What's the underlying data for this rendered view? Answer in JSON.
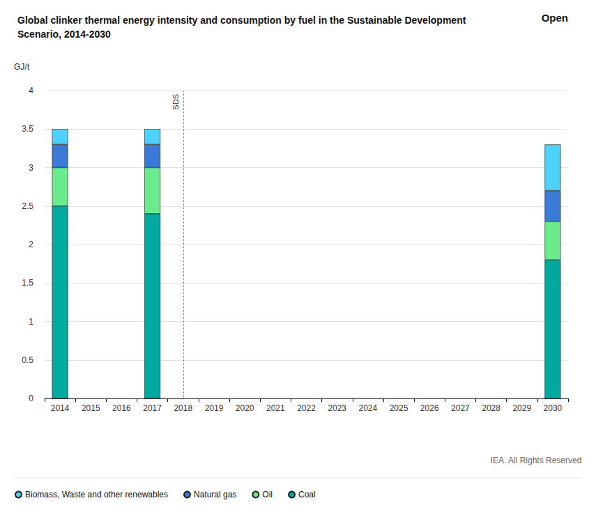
{
  "chart_data": {
    "type": "bar",
    "title": "Global clinker thermal energy intensity and consumption by fuel in the Sustainable Development Scenario, 2014-2030",
    "y_label": "GJ/t",
    "button": "Open",
    "source": "IEA. All Rights Reserved",
    "annotations": [
      {
        "x": "2018",
        "text": "SDS"
      }
    ],
    "categories": [
      "2014",
      "2015",
      "2016",
      "2017",
      "2018",
      "2019",
      "2020",
      "2021",
      "2022",
      "2023",
      "2024",
      "2025",
      "2026",
      "2027",
      "2028",
      "2029",
      "2030"
    ],
    "series": [
      {
        "name": "Coal",
        "color": "#00aa9e",
        "values": [
          2.5,
          null,
          null,
          2.4,
          null,
          null,
          null,
          null,
          null,
          null,
          null,
          null,
          null,
          null,
          null,
          null,
          1.8
        ]
      },
      {
        "name": "Oil",
        "color": "#6beb8e",
        "values": [
          0.5,
          null,
          null,
          0.6,
          null,
          null,
          null,
          null,
          null,
          null,
          null,
          null,
          null,
          null,
          null,
          null,
          0.5
        ]
      },
      {
        "name": "Natural gas",
        "color": "#3b7ad6",
        "values": [
          0.3,
          null,
          null,
          0.3,
          null,
          null,
          null,
          null,
          null,
          null,
          null,
          null,
          null,
          null,
          null,
          null,
          0.4
        ]
      },
      {
        "name": "Biomass, Waste and other renewables",
        "color": "#4dd3fb",
        "values": [
          0.2,
          null,
          null,
          0.2,
          null,
          null,
          null,
          null,
          null,
          null,
          null,
          null,
          null,
          null,
          null,
          null,
          0.6
        ]
      }
    ],
    "ylim": [
      0,
      4
    ],
    "yticks": [
      0,
      0.5,
      1,
      1.5,
      2,
      2.5,
      3,
      3.5,
      4
    ],
    "stacked": true,
    "grid": true,
    "legend": "bottom-left"
  }
}
